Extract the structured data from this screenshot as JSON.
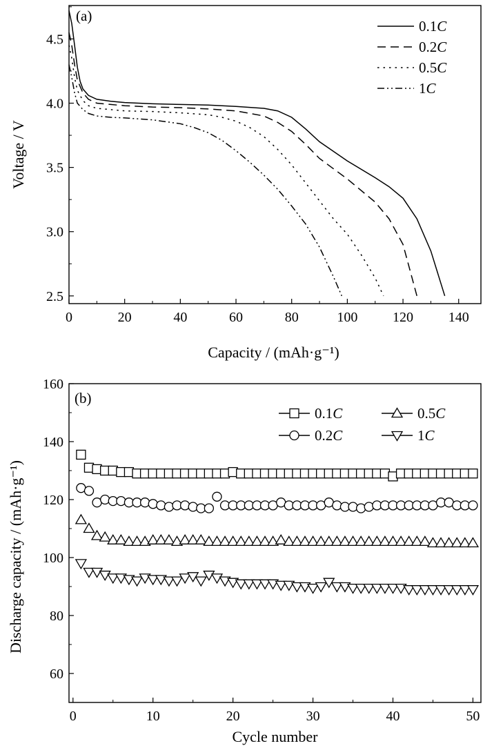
{
  "chart_data": [
    {
      "panel": "(a)",
      "type": "line",
      "xlabel": "Capacity / (mAh·g⁻¹)",
      "ylabel": "Voltage / V",
      "xlim": [
        0,
        148
      ],
      "ylim": [
        2.44,
        4.76
      ],
      "xticks": [
        "0",
        "20",
        "40",
        "60",
        "80",
        "100",
        "120",
        "140"
      ],
      "xtick_values": [
        0,
        20,
        40,
        60,
        80,
        100,
        120,
        140
      ],
      "yticks": [
        "2.5",
        "3.0",
        "3.5",
        "4.0",
        "4.5"
      ],
      "ytick_values": [
        2.5,
        3.0,
        3.5,
        4.0,
        4.5
      ],
      "legend_position": "top-right",
      "series": [
        {
          "name": "0.1",
          "unit": "C",
          "dash": "solid",
          "points": [
            [
              0,
              4.72
            ],
            [
              1,
              4.62
            ],
            [
              2,
              4.45
            ],
            [
              3,
              4.28
            ],
            [
              4,
              4.17
            ],
            [
              5,
              4.11
            ],
            [
              7,
              4.06
            ],
            [
              10,
              4.03
            ],
            [
              15,
              4.015
            ],
            [
              20,
              4.005
            ],
            [
              30,
              3.995
            ],
            [
              40,
              3.99
            ],
            [
              50,
              3.985
            ],
            [
              60,
              3.975
            ],
            [
              70,
              3.96
            ],
            [
              75,
              3.94
            ],
            [
              80,
              3.89
            ],
            [
              85,
              3.8
            ],
            [
              90,
              3.7
            ],
            [
              100,
              3.55
            ],
            [
              110,
              3.42
            ],
            [
              115,
              3.35
            ],
            [
              120,
              3.26
            ],
            [
              125,
              3.1
            ],
            [
              130,
              2.85
            ],
            [
              135,
              2.5
            ]
          ]
        },
        {
          "name": "0.2",
          "unit": "C",
          "dash": "dash",
          "points": [
            [
              0,
              4.55
            ],
            [
              1,
              4.45
            ],
            [
              2,
              4.3
            ],
            [
              3,
              4.18
            ],
            [
              5,
              4.08
            ],
            [
              7,
              4.03
            ],
            [
              10,
              4.0
            ],
            [
              15,
              3.99
            ],
            [
              20,
              3.98
            ],
            [
              30,
              3.97
            ],
            [
              40,
              3.965
            ],
            [
              50,
              3.955
            ],
            [
              60,
              3.94
            ],
            [
              65,
              3.92
            ],
            [
              70,
              3.9
            ],
            [
              75,
              3.85
            ],
            [
              80,
              3.78
            ],
            [
              85,
              3.68
            ],
            [
              90,
              3.57
            ],
            [
              100,
              3.41
            ],
            [
              110,
              3.23
            ],
            [
              115,
              3.1
            ],
            [
              120,
              2.9
            ],
            [
              125,
              2.5
            ]
          ]
        },
        {
          "name": "0.5",
          "unit": "C",
          "dash": "dot",
          "points": [
            [
              0,
              4.45
            ],
            [
              1,
              4.35
            ],
            [
              2,
              4.2
            ],
            [
              3,
              4.1
            ],
            [
              5,
              4.02
            ],
            [
              7,
              3.98
            ],
            [
              10,
              3.96
            ],
            [
              15,
              3.95
            ],
            [
              20,
              3.94
            ],
            [
              30,
              3.935
            ],
            [
              40,
              3.925
            ],
            [
              50,
              3.91
            ],
            [
              55,
              3.89
            ],
            [
              60,
              3.86
            ],
            [
              65,
              3.81
            ],
            [
              70,
              3.74
            ],
            [
              75,
              3.64
            ],
            [
              80,
              3.52
            ],
            [
              85,
              3.38
            ],
            [
              90,
              3.24
            ],
            [
              95,
              3.1
            ],
            [
              100,
              2.98
            ],
            [
              105,
              2.82
            ],
            [
              110,
              2.64
            ],
            [
              113,
              2.5
            ]
          ]
        },
        {
          "name": "1",
          "unit": "C",
          "dash": "dashdotdot",
          "points": [
            [
              0,
              4.3
            ],
            [
              1,
              4.2
            ],
            [
              2,
              4.08
            ],
            [
              3,
              4.0
            ],
            [
              5,
              3.95
            ],
            [
              7,
              3.92
            ],
            [
              10,
              3.9
            ],
            [
              15,
              3.89
            ],
            [
              20,
              3.885
            ],
            [
              30,
              3.87
            ],
            [
              40,
              3.84
            ],
            [
              45,
              3.81
            ],
            [
              50,
              3.77
            ],
            [
              55,
              3.71
            ],
            [
              60,
              3.63
            ],
            [
              65,
              3.54
            ],
            [
              70,
              3.44
            ],
            [
              75,
              3.33
            ],
            [
              80,
              3.2
            ],
            [
              85,
              3.06
            ],
            [
              90,
              2.88
            ],
            [
              95,
              2.65
            ],
            [
              98,
              2.5
            ]
          ]
        }
      ]
    },
    {
      "panel": "(b)",
      "type": "scatter",
      "xlabel": "Cycle number",
      "ylabel": "Discharge capacity / (mAh·g⁻¹)",
      "xlim": [
        -0.5,
        51
      ],
      "ylim": [
        50,
        160
      ],
      "xticks": [
        "0",
        "10",
        "20",
        "30",
        "40",
        "50"
      ],
      "xtick_values": [
        0,
        10,
        20,
        30,
        40,
        50
      ],
      "yticks": [
        "60",
        "80",
        "100",
        "120",
        "140",
        "160"
      ],
      "ytick_values": [
        60,
        80,
        100,
        120,
        140,
        160
      ],
      "legend_position": "top-right",
      "series": [
        {
          "name": "0.1",
          "unit": "C",
          "marker": "square",
          "values": [
            135.5,
            131,
            130.5,
            130,
            130,
            129.5,
            129.5,
            129,
            129,
            129,
            129,
            129,
            129,
            129,
            129,
            129,
            129,
            129,
            129,
            129.5,
            129,
            129,
            129,
            129,
            129,
            129,
            129,
            129,
            129,
            129,
            129,
            129,
            129,
            129,
            129,
            129,
            129,
            129,
            129,
            128,
            129,
            129,
            129,
            129,
            129,
            129,
            129,
            129,
            129,
            129
          ]
        },
        {
          "name": "0.2",
          "unit": "C",
          "marker": "circle",
          "values": [
            124,
            123,
            119,
            120,
            119.5,
            119.5,
            119,
            119,
            119,
            118.5,
            118,
            117.5,
            118,
            118,
            117.5,
            117,
            117,
            121,
            118,
            118,
            118,
            118,
            118,
            118,
            118,
            119,
            118,
            118,
            118,
            118,
            118,
            119,
            118,
            117.5,
            117.5,
            117,
            117.5,
            118,
            118,
            118,
            118,
            118,
            118,
            118,
            118,
            119,
            119,
            118,
            118,
            118
          ]
        },
        {
          "name": "0.5",
          "unit": "C",
          "marker": "triangle-up",
          "values": [
            113,
            110,
            107.5,
            107,
            106,
            106,
            105.5,
            105.5,
            105.5,
            106,
            106,
            106,
            105.5,
            106,
            106,
            106,
            105.5,
            105.5,
            105.5,
            105.5,
            105.5,
            105.5,
            105.5,
            105.5,
            105.5,
            106,
            105.5,
            105.5,
            105.5,
            105.5,
            105.5,
            105.5,
            105.5,
            105.5,
            105.5,
            105.5,
            105.5,
            105.5,
            105.5,
            105.5,
            105.5,
            105.5,
            105.5,
            105.5,
            105,
            105,
            105,
            105,
            105,
            105
          ]
        },
        {
          "name": "1",
          "unit": "C",
          "marker": "triangle-down",
          "values": [
            98,
            95,
            95,
            94,
            93,
            93,
            92.5,
            92,
            93,
            92.5,
            92.5,
            92,
            92,
            93,
            93.5,
            92,
            94,
            93,
            92,
            91.5,
            91,
            91,
            91,
            91,
            91,
            90.5,
            90.5,
            90,
            90,
            89.5,
            90,
            91.5,
            90,
            90,
            89.5,
            89.5,
            89.5,
            89.5,
            89.5,
            89.5,
            89.5,
            89,
            89,
            89,
            89,
            89,
            89,
            89,
            89,
            89
          ]
        }
      ]
    }
  ]
}
